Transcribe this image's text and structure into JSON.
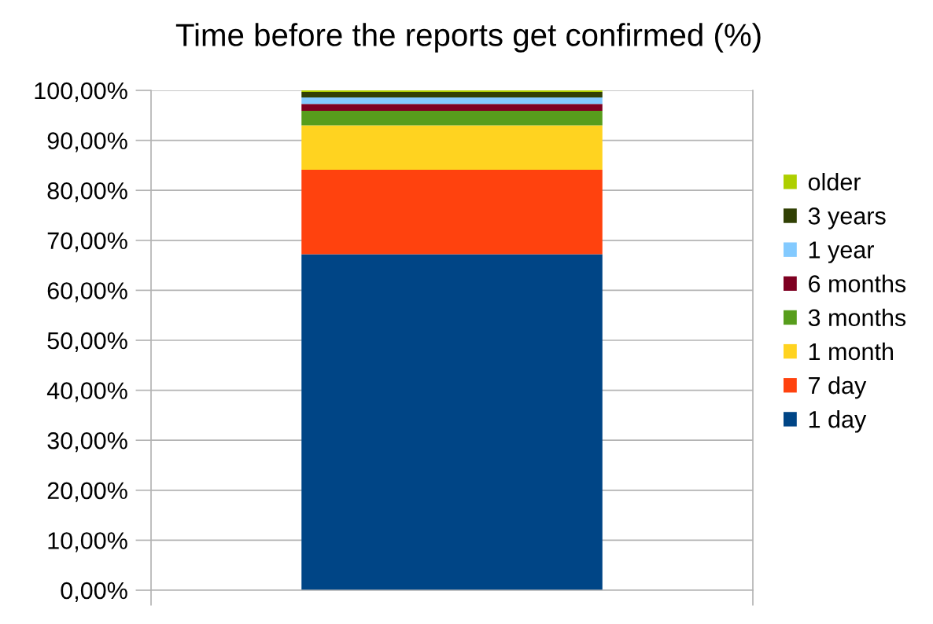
{
  "chart_data": {
    "type": "bar",
    "title": "Time before the reports get confirmed (%)",
    "categories": [
      null
    ],
    "stacked": true,
    "series": [
      {
        "name": "1 day",
        "color": "#004586",
        "values": [
          67.2
        ]
      },
      {
        "name": "7 day",
        "color": "#ff420e",
        "values": [
          16.9
        ]
      },
      {
        "name": "1 month",
        "color": "#ffd320",
        "values": [
          8.9
        ]
      },
      {
        "name": "3 months",
        "color": "#579d1c",
        "values": [
          2.9
        ]
      },
      {
        "name": "6 months",
        "color": "#7e0021",
        "values": [
          1.4
        ]
      },
      {
        "name": "1 year",
        "color": "#83caff",
        "values": [
          1.3
        ]
      },
      {
        "name": "3 years",
        "color": "#314004",
        "values": [
          1.1
        ]
      },
      {
        "name": "older",
        "color": "#aecf00",
        "values": [
          0.3
        ]
      }
    ],
    "ylim": [
      0,
      100
    ],
    "yticks": [
      {
        "value": 0,
        "label": "0,00%"
      },
      {
        "value": 10,
        "label": "10,00%"
      },
      {
        "value": 20,
        "label": "20,00%"
      },
      {
        "value": 30,
        "label": "30,00%"
      },
      {
        "value": 40,
        "label": "40,00%"
      },
      {
        "value": 50,
        "label": "50,00%"
      },
      {
        "value": 60,
        "label": "60,00%"
      },
      {
        "value": 70,
        "label": "70,00%"
      },
      {
        "value": 80,
        "label": "80,00%"
      },
      {
        "value": 90,
        "label": "90,00%"
      },
      {
        "value": 100,
        "label": "100,00%"
      }
    ],
    "tick_labels": "y",
    "grid": "y",
    "legend": "right"
  }
}
